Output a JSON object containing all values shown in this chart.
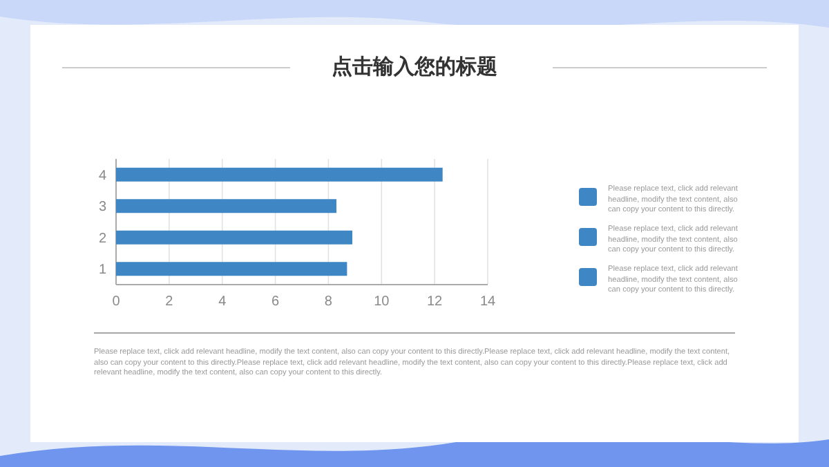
{
  "chart_data": {
    "type": "bar",
    "orientation": "horizontal",
    "title": "点击输入您的标题",
    "categories": [
      "4",
      "3",
      "2",
      "1"
    ],
    "values": [
      12.3,
      8.3,
      8.9,
      8.7
    ],
    "color": "#3f86c4",
    "xlim": [
      0,
      14
    ],
    "xticks": [
      0,
      2,
      4,
      6,
      8,
      10,
      12,
      14
    ],
    "grid": "x",
    "annotations": [
      "Please replace text, click add relevant headline, modify the text content, also can copy your content to this directly.",
      "Please replace text, click add relevant headline, modify the text content, also can copy your content to this directly.",
      "Please replace text, click add relevant headline, modify the text content, also can copy your content to this directly.",
      "Please replace text, click add relevant headline, modify the text content, also can copy your content to this directly.Please replace text, click add relevant headline, modify the text content, also can copy your content to this directly.Please replace text, click add relevant headline, modify the text content, also can copy your content to this directly.Please replace text, click add relevant headline, modify the text content, also can copy your content to this directly."
    ]
  }
}
